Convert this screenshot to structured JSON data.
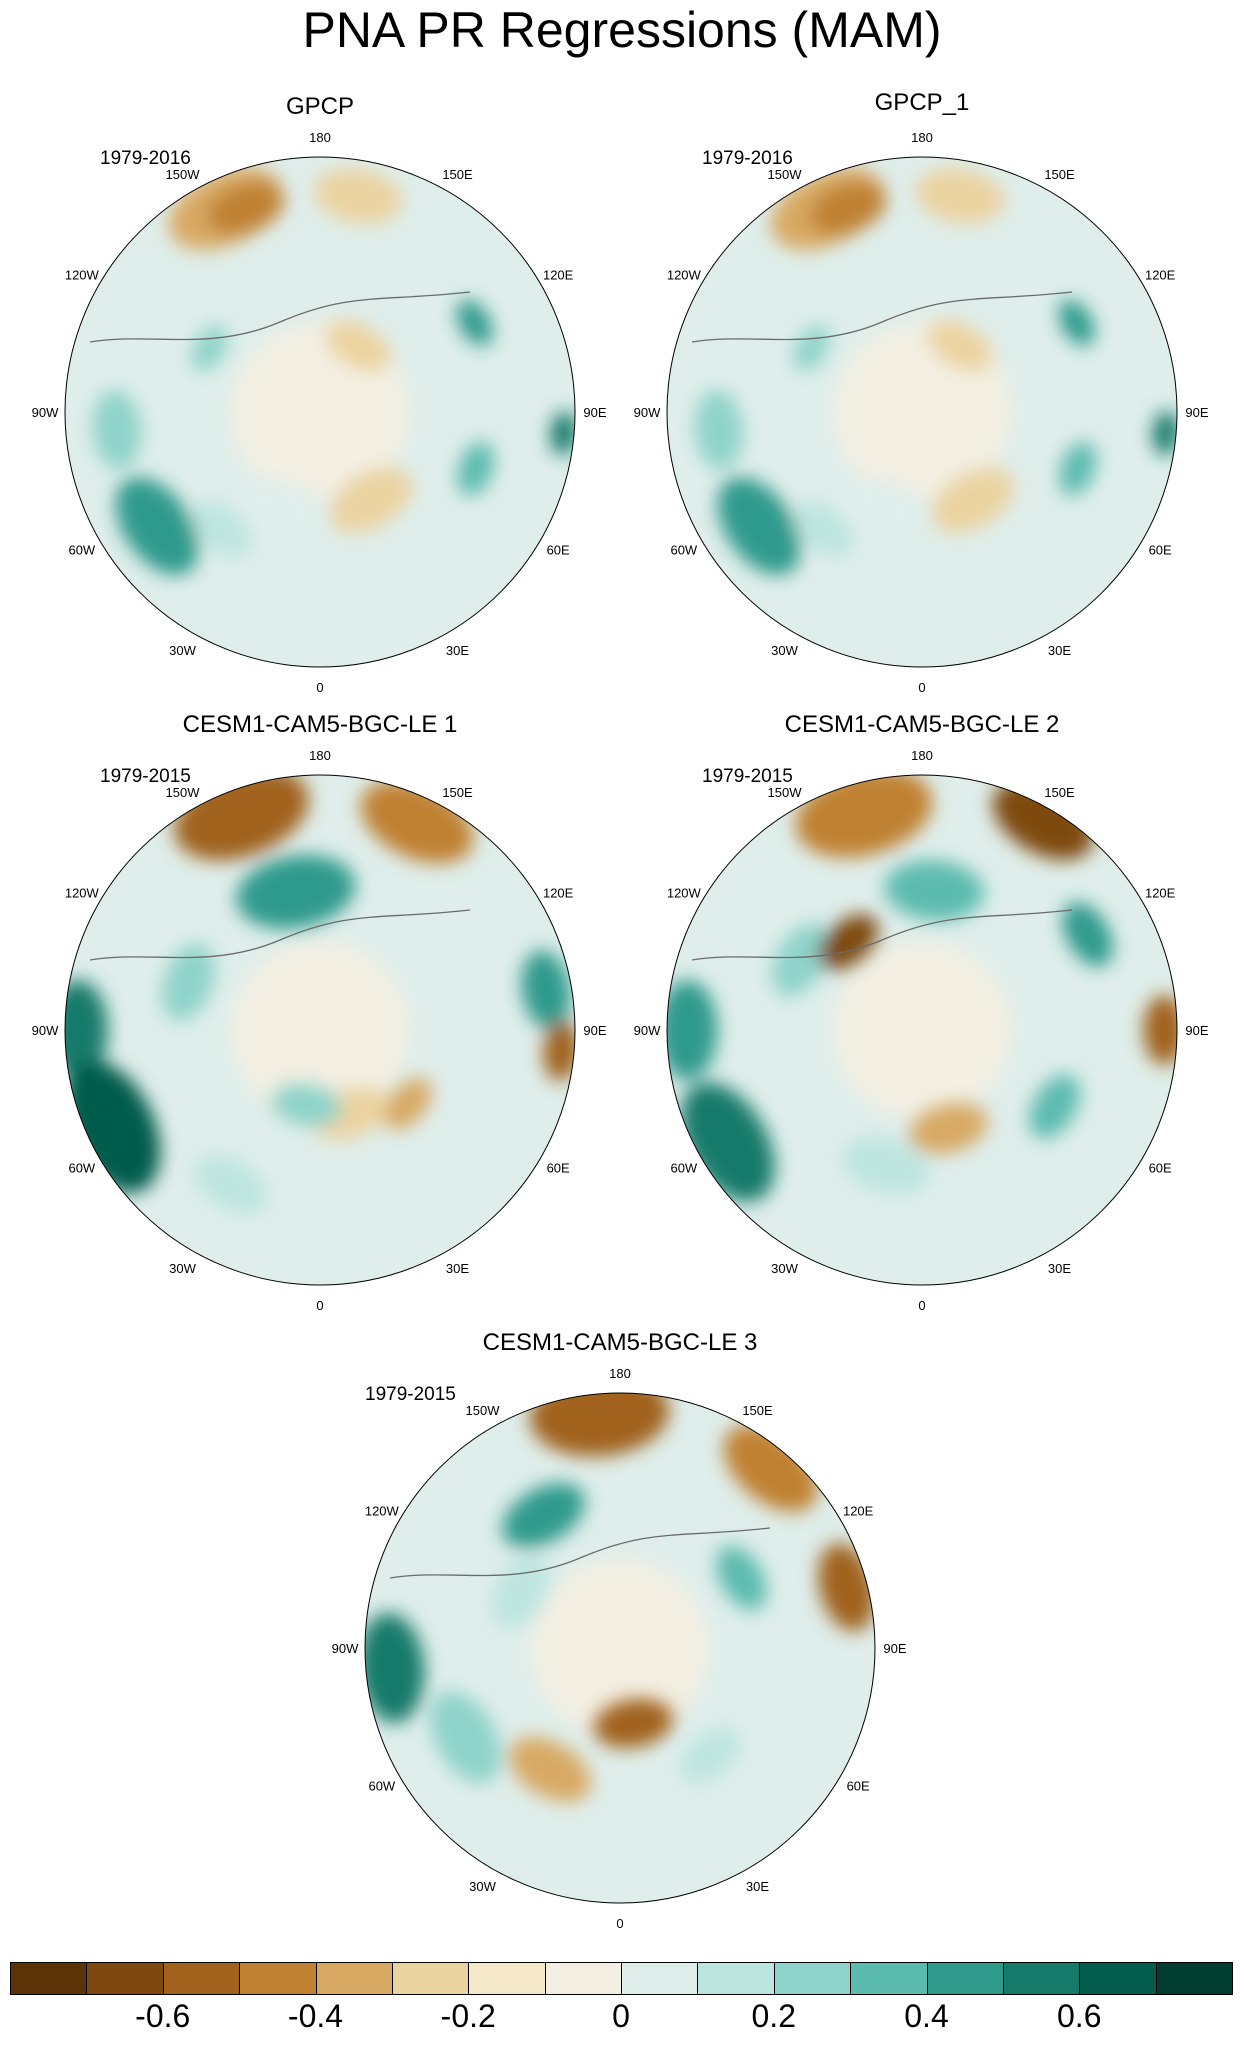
{
  "title": "PNA PR Regressions (MAM)",
  "panels": [
    {
      "title": "GPCP",
      "years": "1979-2016"
    },
    {
      "title": "GPCP_1",
      "years": "1979-2016"
    },
    {
      "title": "CESM1-CAM5-BGC-LE 1",
      "years": "1979-2015"
    },
    {
      "title": "CESM1-CAM5-BGC-LE 2",
      "years": "1979-2015"
    },
    {
      "title": "CESM1-CAM5-BGC-LE 3",
      "years": "1979-2015"
    }
  ],
  "longitude_labels": {
    "top": "180",
    "top_left": "150W",
    "top_right": "150E",
    "upper_left": "120W",
    "upper_right": "120E",
    "left": "90W",
    "right": "90E",
    "lower_left": "60W",
    "lower_right": "60E",
    "bottom_left": "30W",
    "bottom_right": "30E",
    "bottom": "0"
  },
  "colorbar": {
    "colors": [
      "#5b3306",
      "#7e4910",
      "#a0621c",
      "#c08132",
      "#d8a963",
      "#ebd3a0",
      "#f5e9c9",
      "#f3efe3",
      "#dfeeeb",
      "#bde5df",
      "#8ed3c9",
      "#5cbbaf",
      "#2f9a8c",
      "#167a6a",
      "#035c4c",
      "#013c31"
    ],
    "tick_labels": [
      "-0.6",
      "-0.4",
      "-0.2",
      "0",
      "0.2",
      "0.4",
      "0.6"
    ]
  }
}
